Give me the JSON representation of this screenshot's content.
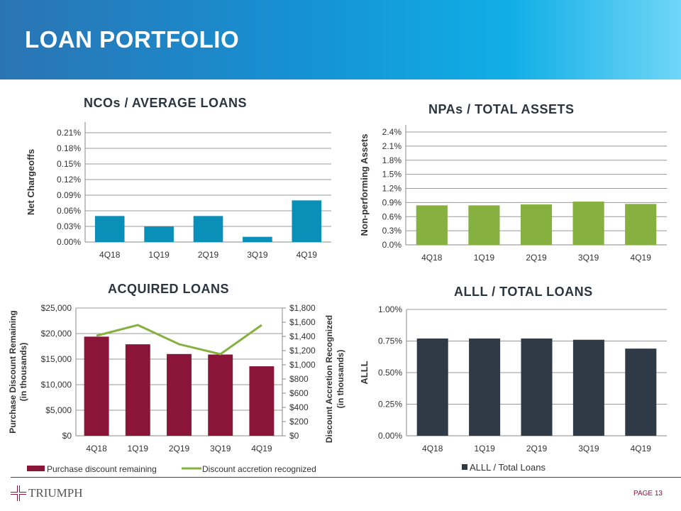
{
  "header": {
    "title": "LOAN PORTFOLIO"
  },
  "footer": {
    "brand": "TRIUMPH",
    "page": "PAGE 13"
  },
  "colors": {
    "nco": "#0a8fb9",
    "npa": "#86b140",
    "bars": "#8a1538",
    "line": "#86b140",
    "alll": "#2e3b46"
  },
  "chart_data": [
    {
      "id": "nco",
      "type": "bar",
      "title": "NCOs / AVERAGE  LOANS",
      "ylabel": "Net Chargeoffs",
      "categories": [
        "4Q18",
        "1Q19",
        "2Q19",
        "3Q19",
        "4Q19"
      ],
      "values": [
        0.05,
        0.03,
        0.05,
        0.01,
        0.08
      ],
      "ylim": [
        0,
        0.21
      ],
      "yticks": [
        "0.00%",
        "0.03%",
        "0.06%",
        "0.09%",
        "0.12%",
        "0.15%",
        "0.18%",
        "0.21%"
      ],
      "grid": true
    },
    {
      "id": "npa",
      "type": "bar",
      "title": "NPAs / TOTAL ASSETS",
      "ylabel": "Non-performing Assets",
      "categories": [
        "4Q18",
        "1Q19",
        "2Q19",
        "3Q19",
        "4Q19"
      ],
      "values": [
        0.84,
        0.84,
        0.86,
        0.92,
        0.87
      ],
      "ylim": [
        0,
        2.4
      ],
      "yticks": [
        "0.0%",
        "0.3%",
        "0.6%",
        "0.9%",
        "1.2%",
        "1.5%",
        "1.8%",
        "2.1%",
        "2.4%"
      ],
      "grid": true
    },
    {
      "id": "acq",
      "type": "bar+line",
      "title": "ACQUIRED  LOANS",
      "ylabel": "Purchase Discount Remaining",
      "ylabel2": "(in thousands)",
      "y2label": "Discount  Accretion Recognized",
      "y2label2": "(in thousands)",
      "categories": [
        "4Q18",
        "1Q19",
        "2Q19",
        "3Q19",
        "4Q19"
      ],
      "series": [
        {
          "name": "Purchase discount remaining",
          "type": "bar",
          "values": [
            19400,
            17900,
            16000,
            15900,
            13600
          ]
        },
        {
          "name": "Discount accretion recognized",
          "type": "line",
          "values": [
            1410,
            1560,
            1290,
            1150,
            1560
          ]
        }
      ],
      "ylim": [
        0,
        25000
      ],
      "y2lim": [
        0,
        1800
      ],
      "yticks": [
        "$0",
        "$5,000",
        "$10,000",
        "$15,000",
        "$20,000",
        "$25,000"
      ],
      "y2ticks": [
        "$0",
        "$200",
        "$400",
        "$600",
        "$800",
        "$1,000",
        "$1,200",
        "$1,400",
        "$1,600",
        "$1,800"
      ],
      "legend": "bottom",
      "grid": true
    },
    {
      "id": "alll",
      "type": "bar",
      "title": "ALLL / TOTAL LOANS",
      "ylabel": "ALLL",
      "categories": [
        "4Q18",
        "1Q19",
        "2Q19",
        "3Q19",
        "4Q19"
      ],
      "values": [
        0.77,
        0.77,
        0.77,
        0.76,
        0.69
      ],
      "ylim": [
        0,
        1.0
      ],
      "yticks": [
        "0.00%",
        "0.25%",
        "0.50%",
        "0.75%",
        "1.00%"
      ],
      "legend_label": "ALLL / Total Loans",
      "legend": "bottom",
      "grid": true
    }
  ]
}
